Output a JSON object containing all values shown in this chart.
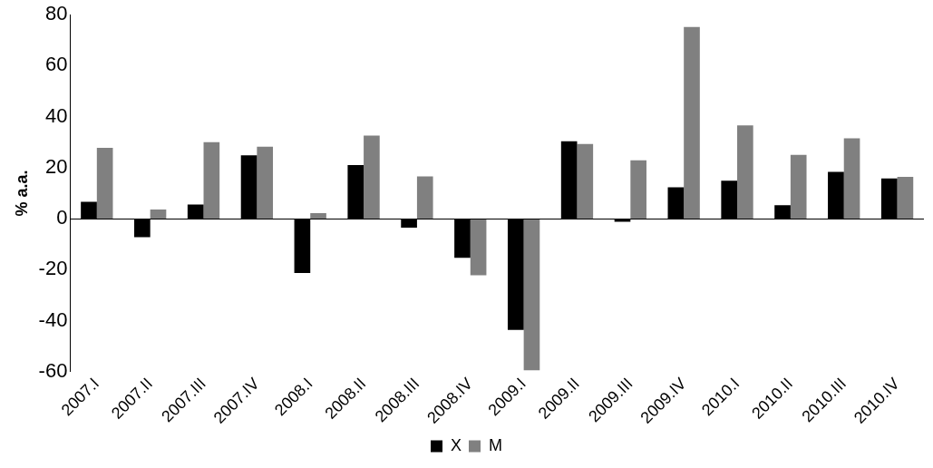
{
  "chart_data": {
    "type": "bar",
    "ylabel": "% a.a.",
    "categories": [
      "2007.I",
      "2007.II",
      "2007.III",
      "2007.IV",
      "2008.I",
      "2008.II",
      "2008.III",
      "2008.IV",
      "2009.I",
      "2009.II",
      "2009.III",
      "2009.IV",
      "2010.I",
      "2010.II",
      "2010.III",
      "2010.IV"
    ],
    "series": [
      {
        "name": "X",
        "color": "#000000",
        "values": [
          6.6,
          -7.2,
          5.6,
          24.9,
          -21.3,
          21.0,
          -3.5,
          -15.3,
          -43.6,
          30.4,
          -1.2,
          12.3,
          14.9,
          5.3,
          18.4,
          15.8
        ]
      },
      {
        "name": "M",
        "color": "#808080",
        "values": [
          27.8,
          3.6,
          30.0,
          28.2,
          2.2,
          32.6,
          16.6,
          -22.2,
          -59.4,
          29.3,
          22.9,
          75.2,
          36.6,
          25.0,
          31.5,
          16.4
        ]
      }
    ],
    "ylim": [
      -60,
      80
    ],
    "yticks": [
      -60,
      -40,
      -20,
      0,
      20,
      40,
      60,
      80
    ],
    "grid": false,
    "legend": "bottom"
  }
}
